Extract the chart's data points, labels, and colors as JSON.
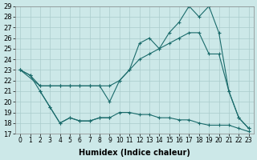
{
  "xlabel": "Humidex (Indice chaleur)",
  "bg_color": "#cce8e8",
  "grid_color": "#aacccc",
  "line_color": "#1a6b6b",
  "ylim_min": 17,
  "ylim_max": 29,
  "xlim_min": -0.5,
  "xlim_max": 23.5,
  "line1_x": [
    0,
    1,
    2,
    3,
    4,
    5,
    6,
    7,
    8,
    9,
    10,
    11,
    12,
    13,
    14,
    15,
    16,
    17,
    18,
    19,
    20,
    21,
    22,
    23
  ],
  "line1_y": [
    23,
    22.5,
    21.5,
    21.5,
    21.5,
    21.5,
    21.5,
    21.5,
    21.5,
    20,
    22,
    23,
    25.5,
    26,
    25.0,
    26.5,
    27.5,
    29,
    28,
    29,
    26.5,
    21,
    18.5,
    17.5
  ],
  "line2_x": [
    0,
    2,
    3,
    4,
    5,
    6,
    7,
    8,
    9,
    10,
    11,
    12,
    13,
    14,
    15,
    16,
    17,
    18,
    19,
    20,
    21,
    22,
    23
  ],
  "line2_y": [
    23,
    21.5,
    21.5,
    21.5,
    21.5,
    21.5,
    21.5,
    21.5,
    21.5,
    22,
    23,
    24,
    24.5,
    25,
    25.5,
    26,
    26.5,
    26.5,
    24.5,
    24.5,
    21,
    18.5,
    17.5
  ],
  "line3_x": [
    2,
    3,
    4,
    5,
    6,
    7,
    8,
    9
  ],
  "line3_y": [
    21,
    19.5,
    18,
    18.5,
    18.2,
    18.2,
    18.5,
    18.5
  ],
  "line4_x": [
    0,
    1,
    2,
    3,
    4,
    5,
    6,
    7,
    8,
    9,
    10,
    11,
    12,
    13,
    14,
    15,
    16,
    17,
    18,
    19,
    20,
    21,
    22,
    23
  ],
  "line4_y": [
    23,
    22.5,
    21,
    19.5,
    18.0,
    18.5,
    18.2,
    18.2,
    18.5,
    18.5,
    19,
    19,
    18.8,
    18.8,
    18.5,
    18.5,
    18.3,
    18.3,
    18.0,
    17.8,
    17.8,
    17.8,
    17.5,
    17.2
  ]
}
